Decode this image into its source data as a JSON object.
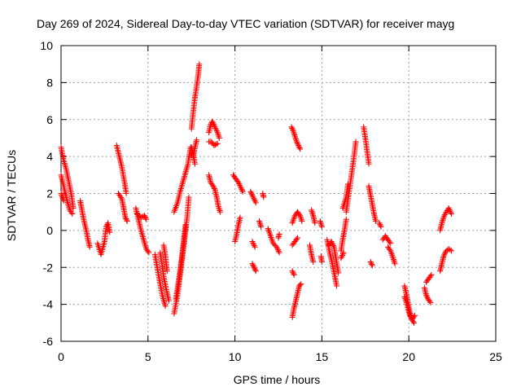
{
  "chart_data": {
    "type": "scatter",
    "title": "Day 269 of 2024, Sidereal Day-to-day VTEC variation (SDTVAR) for receiver mayg",
    "xlabel": "GPS time / hours",
    "ylabel": "SDTVAR / TECUs",
    "xlim": [
      0,
      25
    ],
    "ylim": [
      -6,
      10
    ],
    "xticks": [
      0,
      5,
      10,
      15,
      20,
      25
    ],
    "yticks": [
      -6,
      -4,
      -2,
      0,
      2,
      4,
      6,
      8,
      10
    ],
    "grid": true,
    "marker": "+",
    "color": "#ff0000",
    "tracks": [
      [
        [
          0.0,
          4.5
        ],
        [
          0.15,
          3.8
        ],
        [
          0.3,
          3.3
        ],
        [
          0.45,
          2.6
        ],
        [
          0.6,
          1.9
        ],
        [
          0.7,
          1.2
        ]
      ],
      [
        [
          0.0,
          3.0
        ],
        [
          0.2,
          2.2
        ],
        [
          0.35,
          1.6
        ],
        [
          0.5,
          1.1
        ],
        [
          0.65,
          0.9
        ]
      ],
      [
        [
          0.0,
          2.0
        ],
        [
          0.15,
          1.6
        ]
      ],
      [
        [
          1.1,
          1.6
        ],
        [
          1.2,
          1.1
        ],
        [
          1.3,
          0.6
        ],
        [
          1.45,
          0.0
        ],
        [
          1.55,
          -0.5
        ],
        [
          1.65,
          -0.9
        ]
      ],
      [
        [
          2.1,
          -0.7
        ],
        [
          2.3,
          -1.3
        ],
        [
          2.5,
          -0.6
        ],
        [
          2.6,
          0.2
        ],
        [
          2.7,
          0.4
        ],
        [
          2.8,
          -0.1
        ]
      ],
      [
        [
          3.2,
          4.6
        ],
        [
          3.35,
          4.0
        ],
        [
          3.5,
          3.4
        ],
        [
          3.65,
          2.6
        ],
        [
          3.75,
          2.0
        ]
      ],
      [
        [
          3.3,
          2.0
        ],
        [
          3.5,
          1.7
        ],
        [
          3.6,
          1.2
        ],
        [
          3.7,
          0.7
        ],
        [
          3.8,
          0.5
        ]
      ],
      [
        [
          4.3,
          1.2
        ],
        [
          4.45,
          0.6
        ],
        [
          4.6,
          0.0
        ],
        [
          4.75,
          -0.5
        ],
        [
          4.9,
          -1.0
        ],
        [
          5.05,
          -1.2
        ]
      ],
      [
        [
          4.4,
          0.9
        ],
        [
          4.6,
          0.7
        ],
        [
          4.8,
          0.8
        ],
        [
          4.9,
          0.6
        ]
      ],
      [
        [
          5.4,
          -1.3
        ],
        [
          5.55,
          -2.1
        ],
        [
          5.7,
          -2.9
        ],
        [
          5.85,
          -3.6
        ],
        [
          6.0,
          -4.1
        ]
      ],
      [
        [
          5.7,
          -1.2
        ],
        [
          5.8,
          -1.8
        ],
        [
          5.9,
          -2.5
        ],
        [
          6.05,
          -3.2
        ],
        [
          6.2,
          -3.8
        ]
      ],
      [
        [
          5.9,
          -0.8
        ],
        [
          6.0,
          -1.4
        ],
        [
          6.1,
          -2.2
        ]
      ],
      [
        [
          6.5,
          -4.5
        ],
        [
          6.7,
          -3.5
        ],
        [
          6.9,
          -2.0
        ],
        [
          7.1,
          -0.5
        ],
        [
          7.25,
          0.7
        ],
        [
          7.35,
          1.8
        ]
      ],
      [
        [
          6.6,
          -3.7
        ],
        [
          6.8,
          -2.5
        ],
        [
          7.0,
          -1.0
        ],
        [
          7.15,
          0.3
        ]
      ],
      [
        [
          6.5,
          1.0
        ],
        [
          6.7,
          1.5
        ],
        [
          6.85,
          2.1
        ],
        [
          7.0,
          2.6
        ],
        [
          7.15,
          3.1
        ],
        [
          7.3,
          3.6
        ],
        [
          7.45,
          4.5
        ]
      ],
      [
        [
          7.6,
          4.0
        ],
        [
          7.7,
          4.5
        ],
        [
          7.8,
          4.9
        ]
      ],
      [
        [
          7.5,
          5.5
        ],
        [
          7.6,
          6.4
        ],
        [
          7.7,
          7.2
        ],
        [
          7.8,
          7.8
        ],
        [
          7.9,
          8.5
        ],
        [
          7.95,
          9.0
        ]
      ],
      [
        [
          7.5,
          4.5
        ],
        [
          7.6,
          4.1
        ],
        [
          7.7,
          3.6
        ]
      ],
      [
        [
          8.5,
          5.3
        ],
        [
          8.6,
          5.7
        ],
        [
          8.7,
          5.9
        ],
        [
          8.85,
          5.6
        ],
        [
          9.0,
          5.3
        ],
        [
          9.1,
          5.0
        ]
      ],
      [
        [
          8.5,
          4.8
        ],
        [
          8.65,
          4.8
        ],
        [
          8.8,
          4.6
        ],
        [
          9.0,
          4.7
        ]
      ],
      [
        [
          8.5,
          3.0
        ],
        [
          8.6,
          2.6
        ],
        [
          8.75,
          2.4
        ],
        [
          8.85,
          2.2
        ],
        [
          8.95,
          1.8
        ],
        [
          9.05,
          1.3
        ],
        [
          9.15,
          1.0
        ]
      ],
      [
        [
          9.9,
          3.0
        ],
        [
          10.05,
          2.8
        ],
        [
          10.2,
          2.6
        ],
        [
          10.35,
          2.3
        ],
        [
          10.45,
          2.1
        ]
      ],
      [
        [
          10.0,
          -0.6
        ],
        [
          10.1,
          -0.2
        ],
        [
          10.2,
          0.3
        ],
        [
          10.3,
          0.7
        ]
      ],
      [
        [
          10.9,
          2.1
        ],
        [
          11.05,
          1.8
        ],
        [
          11.2,
          1.5
        ]
      ],
      [
        [
          11.6,
          2.0
        ],
        [
          11.65,
          1.8
        ]
      ],
      [
        [
          11.0,
          -0.6
        ],
        [
          11.15,
          -0.9
        ]
      ],
      [
        [
          11.0,
          -1.8
        ],
        [
          11.1,
          -2.0
        ],
        [
          11.2,
          -2.2
        ]
      ],
      [
        [
          11.4,
          0.5
        ],
        [
          11.5,
          0.2
        ]
      ],
      [
        [
          11.9,
          0.1
        ],
        [
          12.05,
          -0.3
        ],
        [
          12.2,
          -0.7
        ],
        [
          12.4,
          -0.9
        ],
        [
          12.55,
          -1.2
        ]
      ],
      [
        [
          12.5,
          -0.4
        ],
        [
          12.55,
          -0.2
        ]
      ],
      [
        [
          13.25,
          5.6
        ],
        [
          13.35,
          5.4
        ],
        [
          13.45,
          5.1
        ],
        [
          13.55,
          4.8
        ],
        [
          13.65,
          4.6
        ],
        [
          13.75,
          4.4
        ]
      ],
      [
        [
          13.3,
          0.4
        ],
        [
          13.45,
          0.8
        ],
        [
          13.6,
          1.0
        ],
        [
          13.75,
          0.8
        ],
        [
          13.85,
          0.5
        ]
      ],
      [
        [
          13.3,
          -0.8
        ],
        [
          13.45,
          -0.6
        ],
        [
          13.6,
          -0.4
        ]
      ],
      [
        [
          13.3,
          -2.2
        ],
        [
          13.4,
          -2.4
        ]
      ],
      [
        [
          13.3,
          -4.7
        ],
        [
          13.4,
          -4.2
        ],
        [
          13.5,
          -3.8
        ],
        [
          13.6,
          -3.4
        ],
        [
          13.7,
          -3.0
        ],
        [
          13.8,
          -2.9
        ]
      ],
      [
        [
          14.4,
          1.1
        ],
        [
          14.5,
          0.8
        ],
        [
          14.6,
          0.4
        ]
      ],
      [
        [
          14.3,
          -0.8
        ],
        [
          14.4,
          -1.3
        ],
        [
          14.5,
          -1.7
        ]
      ],
      [
        [
          14.9,
          0.5
        ],
        [
          15.0,
          0.2
        ]
      ],
      [
        [
          14.95,
          -1.4
        ],
        [
          15.0,
          -1.7
        ]
      ],
      [
        [
          15.3,
          -0.5
        ],
        [
          15.45,
          -1.2
        ],
        [
          15.6,
          -1.8
        ],
        [
          15.75,
          -2.5
        ],
        [
          15.85,
          -3.0
        ]
      ],
      [
        [
          15.4,
          -0.8
        ],
        [
          15.55,
          -0.6
        ],
        [
          15.7,
          -0.9
        ],
        [
          15.8,
          -1.5
        ],
        [
          15.95,
          -2.3
        ]
      ],
      [
        [
          16.1,
          -1.1
        ],
        [
          16.2,
          -0.5
        ],
        [
          16.3,
          0.0
        ],
        [
          16.4,
          0.6
        ]
      ],
      [
        [
          16.1,
          -1.5
        ],
        [
          16.25,
          -1.2
        ]
      ],
      [
        [
          16.2,
          1.2
        ],
        [
          16.4,
          1.8
        ],
        [
          16.5,
          2.5
        ]
      ],
      [
        [
          16.4,
          1.0
        ],
        [
          16.55,
          2.0
        ],
        [
          16.7,
          3.0
        ],
        [
          16.85,
          4.0
        ],
        [
          16.95,
          4.8
        ]
      ],
      [
        [
          17.4,
          5.6
        ],
        [
          17.5,
          5.0
        ],
        [
          17.6,
          4.3
        ],
        [
          17.7,
          3.6
        ]
      ],
      [
        [
          17.7,
          2.4
        ],
        [
          17.8,
          1.9
        ],
        [
          17.9,
          1.4
        ],
        [
          18.0,
          0.9
        ],
        [
          18.1,
          0.5
        ]
      ],
      [
        [
          17.8,
          -1.7
        ],
        [
          17.9,
          -1.9
        ]
      ],
      [
        [
          18.3,
          0.4
        ],
        [
          18.4,
          0.2
        ]
      ],
      [
        [
          18.5,
          -0.5
        ],
        [
          18.65,
          -0.3
        ],
        [
          18.8,
          -0.5
        ],
        [
          18.95,
          -0.7
        ]
      ],
      [
        [
          18.8,
          -0.9
        ],
        [
          18.95,
          -1.1
        ],
        [
          19.1,
          -1.5
        ],
        [
          19.2,
          -1.8
        ]
      ],
      [
        [
          19.75,
          -3.0
        ],
        [
          19.85,
          -3.4
        ],
        [
          19.95,
          -3.9
        ],
        [
          20.05,
          -4.4
        ],
        [
          20.15,
          -4.8
        ],
        [
          20.3,
          -5.0
        ]
      ],
      [
        [
          19.75,
          -3.6
        ],
        [
          19.9,
          -4.0
        ],
        [
          20.05,
          -4.6
        ],
        [
          20.2,
          -4.8
        ],
        [
          20.35,
          -4.6
        ]
      ],
      [
        [
          20.9,
          -3.1
        ],
        [
          21.0,
          -3.5
        ],
        [
          21.1,
          -3.7
        ],
        [
          21.25,
          -3.9
        ]
      ],
      [
        [
          21.0,
          -2.8
        ],
        [
          21.15,
          -2.6
        ],
        [
          21.3,
          -2.4
        ]
      ],
      [
        [
          21.8,
          0.0
        ],
        [
          21.9,
          0.4
        ],
        [
          22.0,
          0.7
        ],
        [
          22.15,
          1.0
        ],
        [
          22.3,
          1.2
        ],
        [
          22.45,
          0.9
        ]
      ],
      [
        [
          21.8,
          -2.2
        ],
        [
          21.9,
          -1.8
        ],
        [
          22.0,
          -1.4
        ],
        [
          22.15,
          -1.1
        ],
        [
          22.3,
          -1.0
        ],
        [
          22.45,
          -1.1
        ]
      ]
    ]
  }
}
